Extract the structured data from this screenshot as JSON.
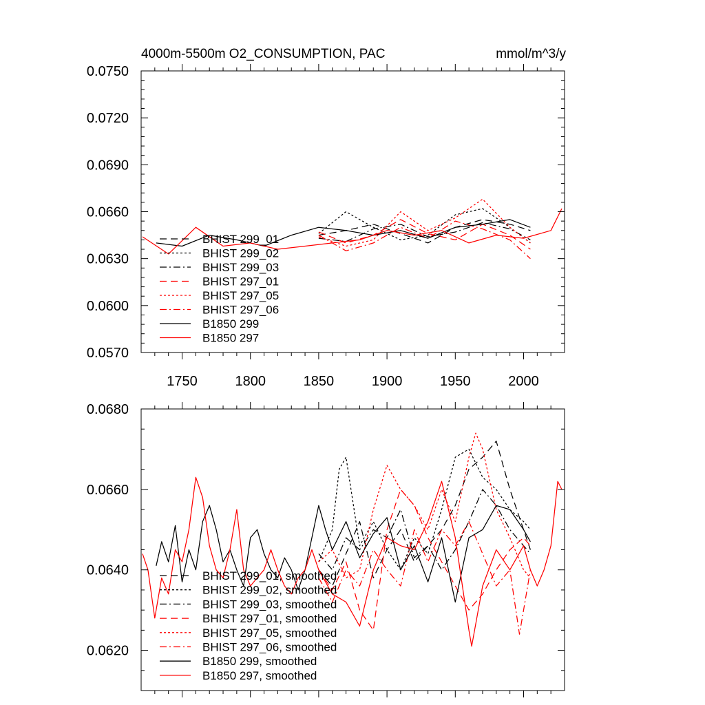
{
  "chart_data": [
    {
      "type": "line",
      "title_left": "4000m-5500m O2_CONSUMPTION, PAC",
      "title_right": "mmol/m^3/y",
      "xlabel": "",
      "ylabel": "",
      "xlim": [
        1720,
        2030
      ],
      "ylim": [
        0.057,
        0.075
      ],
      "x_ticks": [
        1750,
        1800,
        1850,
        1900,
        1950,
        2000
      ],
      "x_tick_labels": [
        "1750",
        "1800",
        "1850",
        "1900",
        "1950",
        "2000"
      ],
      "y_ticks": [
        0.057,
        0.06,
        0.063,
        0.066,
        0.069,
        0.072,
        0.075
      ],
      "y_tick_labels": [
        "0.0570",
        "0.0600",
        "0.0630",
        "0.0660",
        "0.0690",
        "0.0720",
        "0.0750"
      ],
      "legend_position": "lower-left",
      "series": [
        {
          "name": "BHIST 299_01",
          "color": "#000000",
          "dash": "long-dash",
          "x": [
            1850,
            1870,
            1890,
            1910,
            1930,
            1950,
            1970,
            1990,
            2005
          ],
          "y": [
            0.0645,
            0.0648,
            0.0652,
            0.0646,
            0.064,
            0.065,
            0.0655,
            0.0652,
            0.0648
          ]
        },
        {
          "name": "BHIST 299_02",
          "color": "#000000",
          "dash": "short-dash",
          "x": [
            1850,
            1870,
            1890,
            1910,
            1930,
            1950,
            1970,
            1990,
            2005
          ],
          "y": [
            0.0646,
            0.066,
            0.065,
            0.0642,
            0.0645,
            0.0658,
            0.0662,
            0.065,
            0.064
          ]
        },
        {
          "name": "BHIST 299_03",
          "color": "#000000",
          "dash": "dash-dot",
          "x": [
            1850,
            1870,
            1890,
            1910,
            1930,
            1950,
            1970,
            1990,
            2005
          ],
          "y": [
            0.0643,
            0.0641,
            0.0649,
            0.0652,
            0.0644,
            0.0647,
            0.0653,
            0.0649,
            0.0642
          ]
        },
        {
          "name": "BHIST 297_01",
          "color": "#ff0000",
          "dash": "long-dash",
          "x": [
            1850,
            1870,
            1890,
            1910,
            1930,
            1950,
            1970,
            1990,
            2005
          ],
          "y": [
            0.0647,
            0.064,
            0.0645,
            0.0655,
            0.0646,
            0.0642,
            0.0652,
            0.0645,
            0.0636
          ]
        },
        {
          "name": "BHIST 297_05",
          "color": "#ff0000",
          "dash": "short-dash",
          "x": [
            1850,
            1870,
            1890,
            1910,
            1930,
            1950,
            1970,
            1990,
            2005
          ],
          "y": [
            0.0644,
            0.0638,
            0.0642,
            0.066,
            0.0648,
            0.0656,
            0.0668,
            0.065,
            0.064
          ]
        },
        {
          "name": "BHIST 297_06",
          "color": "#ff0000",
          "dash": "dash-dot",
          "x": [
            1850,
            1870,
            1890,
            1910,
            1930,
            1950,
            1970,
            1990,
            2005
          ],
          "y": [
            0.0645,
            0.0635,
            0.064,
            0.065,
            0.0643,
            0.0654,
            0.0649,
            0.0642,
            0.063
          ]
        },
        {
          "name": "B1850 299",
          "color": "#000000",
          "dash": "solid",
          "x": [
            1731,
            1750,
            1770,
            1790,
            1810,
            1830,
            1850,
            1870,
            1890,
            1910,
            1930,
            1950,
            1970,
            1990,
            2005
          ],
          "y": [
            0.064,
            0.0638,
            0.0645,
            0.0642,
            0.0638,
            0.0645,
            0.065,
            0.0648,
            0.0645,
            0.0648,
            0.0643,
            0.065,
            0.0652,
            0.0655,
            0.065
          ]
        },
        {
          "name": "B1850 297",
          "color": "#ff0000",
          "dash": "solid",
          "x": [
            1721,
            1740,
            1760,
            1780,
            1800,
            1820,
            1840,
            1860,
            1880,
            1900,
            1920,
            1940,
            1960,
            1980,
            2000,
            2020,
            2028
          ],
          "y": [
            0.0644,
            0.0633,
            0.065,
            0.0638,
            0.064,
            0.0636,
            0.0638,
            0.064,
            0.0642,
            0.0648,
            0.0645,
            0.0648,
            0.064,
            0.0645,
            0.0643,
            0.0648,
            0.0662
          ]
        }
      ]
    },
    {
      "type": "line",
      "xlim": [
        1720,
        2030
      ],
      "ylim": [
        0.061,
        0.068
      ],
      "x_ticks": [
        1750,
        1800,
        1850,
        1900,
        1950,
        2000
      ],
      "x_tick_labels": [],
      "y_ticks": [
        0.062,
        0.064,
        0.066,
        0.068
      ],
      "y_tick_labels": [
        "0.0620",
        "0.0640",
        "0.0660",
        "0.0680"
      ],
      "legend_position": "lower-left",
      "series": [
        {
          "name": "BHIST 299_01, smoothed",
          "color": "#000000",
          "dash": "long-dash",
          "x": [
            1850,
            1860,
            1870,
            1880,
            1890,
            1900,
            1910,
            1920,
            1930,
            1940,
            1950,
            1960,
            1970,
            1980,
            1990,
            2000,
            2005
          ],
          "y": [
            0.064,
            0.0636,
            0.0644,
            0.0652,
            0.0638,
            0.0645,
            0.065,
            0.0642,
            0.0646,
            0.065,
            0.0656,
            0.0665,
            0.0668,
            0.0672,
            0.066,
            0.065,
            0.0645
          ]
        },
        {
          "name": "BHIST 299_02, smoothed",
          "color": "#000000",
          "dash": "short-dash",
          "x": [
            1850,
            1860,
            1865,
            1870,
            1880,
            1890,
            1900,
            1910,
            1920,
            1930,
            1940,
            1950,
            1960,
            1970,
            1980,
            1990,
            2000,
            2005
          ],
          "y": [
            0.0642,
            0.065,
            0.0665,
            0.0668,
            0.0646,
            0.0652,
            0.0645,
            0.064,
            0.0648,
            0.0644,
            0.0655,
            0.0668,
            0.067,
            0.0663,
            0.066,
            0.0655,
            0.0652,
            0.065
          ]
        },
        {
          "name": "BHIST 299_03, smoothed",
          "color": "#000000",
          "dash": "dash-dot",
          "x": [
            1850,
            1860,
            1870,
            1880,
            1890,
            1900,
            1910,
            1920,
            1930,
            1940,
            1950,
            1960,
            1970,
            1980,
            1990,
            2000,
            2005
          ],
          "y": [
            0.0644,
            0.064,
            0.0648,
            0.0645,
            0.065,
            0.0648,
            0.0655,
            0.0643,
            0.0646,
            0.064,
            0.0645,
            0.0652,
            0.066,
            0.0656,
            0.065,
            0.0646,
            0.0644
          ]
        },
        {
          "name": "BHIST 297_01, smoothed",
          "color": "#ff0000",
          "dash": "long-dash",
          "x": [
            1850,
            1860,
            1870,
            1880,
            1890,
            1900,
            1910,
            1920,
            1930,
            1940,
            1950,
            1960,
            1970,
            1980,
            1990,
            2000,
            2005
          ],
          "y": [
            0.064,
            0.0635,
            0.0642,
            0.063,
            0.0625,
            0.065,
            0.066,
            0.0656,
            0.0648,
            0.0642,
            0.0636,
            0.063,
            0.0634,
            0.064,
            0.0645,
            0.0648,
            0.0646
          ]
        },
        {
          "name": "BHIST 297_05, smoothed",
          "color": "#ff0000",
          "dash": "short-dash",
          "x": [
            1850,
            1860,
            1870,
            1880,
            1890,
            1900,
            1910,
            1920,
            1930,
            1940,
            1950,
            1960,
            1965,
            1970,
            1980,
            1990,
            2000,
            2005
          ],
          "y": [
            0.0642,
            0.0645,
            0.0638,
            0.064,
            0.0655,
            0.0666,
            0.066,
            0.0656,
            0.065,
            0.066,
            0.0652,
            0.0668,
            0.0674,
            0.067,
            0.0655,
            0.0648,
            0.064,
            0.0638
          ]
        },
        {
          "name": "BHIST 297_06, smoothed",
          "color": "#ff0000",
          "dash": "dash-dot",
          "x": [
            1850,
            1860,
            1870,
            1880,
            1890,
            1900,
            1910,
            1920,
            1930,
            1940,
            1950,
            1960,
            1970,
            1980,
            1990,
            1997,
            2000,
            2005
          ],
          "y": [
            0.0638,
            0.0632,
            0.064,
            0.0636,
            0.0645,
            0.064,
            0.0636,
            0.065,
            0.0642,
            0.065,
            0.0646,
            0.0652,
            0.0644,
            0.0636,
            0.064,
            0.0624,
            0.063,
            0.064
          ]
        },
        {
          "name": "B1850 299, smoothed",
          "color": "#000000",
          "dash": "solid",
          "x": [
            1731,
            1735,
            1740,
            1745,
            1750,
            1755,
            1760,
            1765,
            1770,
            1775,
            1780,
            1785,
            1790,
            1795,
            1800,
            1805,
            1810,
            1815,
            1820,
            1825,
            1830,
            1835,
            1840,
            1845,
            1850,
            1855,
            1860,
            1870,
            1880,
            1890,
            1900,
            1910,
            1920,
            1930,
            1940,
            1950,
            1960,
            1970,
            1980,
            1990,
            2000,
            2005
          ],
          "y": [
            0.0641,
            0.0647,
            0.0642,
            0.0651,
            0.0637,
            0.0645,
            0.064,
            0.0652,
            0.0656,
            0.065,
            0.0642,
            0.0645,
            0.064,
            0.0636,
            0.0648,
            0.065,
            0.0644,
            0.064,
            0.0638,
            0.0643,
            0.064,
            0.0635,
            0.064,
            0.0648,
            0.0656,
            0.065,
            0.0645,
            0.0652,
            0.0643,
            0.0649,
            0.0653,
            0.064,
            0.0646,
            0.0637,
            0.0648,
            0.0632,
            0.0648,
            0.065,
            0.0656,
            0.0655,
            0.065,
            0.0647
          ]
        },
        {
          "name": "B1850 297, smoothed",
          "color": "#ff0000",
          "dash": "solid",
          "x": [
            1721,
            1725,
            1730,
            1735,
            1740,
            1745,
            1750,
            1755,
            1760,
            1765,
            1770,
            1775,
            1780,
            1785,
            1790,
            1795,
            1800,
            1805,
            1810,
            1815,
            1820,
            1825,
            1830,
            1835,
            1840,
            1845,
            1850,
            1860,
            1870,
            1880,
            1890,
            1900,
            1910,
            1920,
            1930,
            1940,
            1950,
            1960,
            1962,
            1970,
            1980,
            1990,
            2000,
            2005,
            2010,
            2015,
            2020,
            2025,
            2028
          ],
          "y": [
            0.0644,
            0.064,
            0.0628,
            0.0638,
            0.0634,
            0.0645,
            0.0642,
            0.065,
            0.0663,
            0.0658,
            0.0646,
            0.064,
            0.0638,
            0.0645,
            0.0655,
            0.064,
            0.0636,
            0.0638,
            0.064,
            0.0645,
            0.064,
            0.0636,
            0.0634,
            0.0638,
            0.064,
            0.0645,
            0.064,
            0.0634,
            0.0632,
            0.0626,
            0.064,
            0.0648,
            0.0646,
            0.0645,
            0.0652,
            0.0662,
            0.0648,
            0.0625,
            0.0621,
            0.0636,
            0.0645,
            0.064,
            0.0646,
            0.064,
            0.0636,
            0.064,
            0.0646,
            0.0662,
            0.066
          ]
        }
      ]
    }
  ]
}
